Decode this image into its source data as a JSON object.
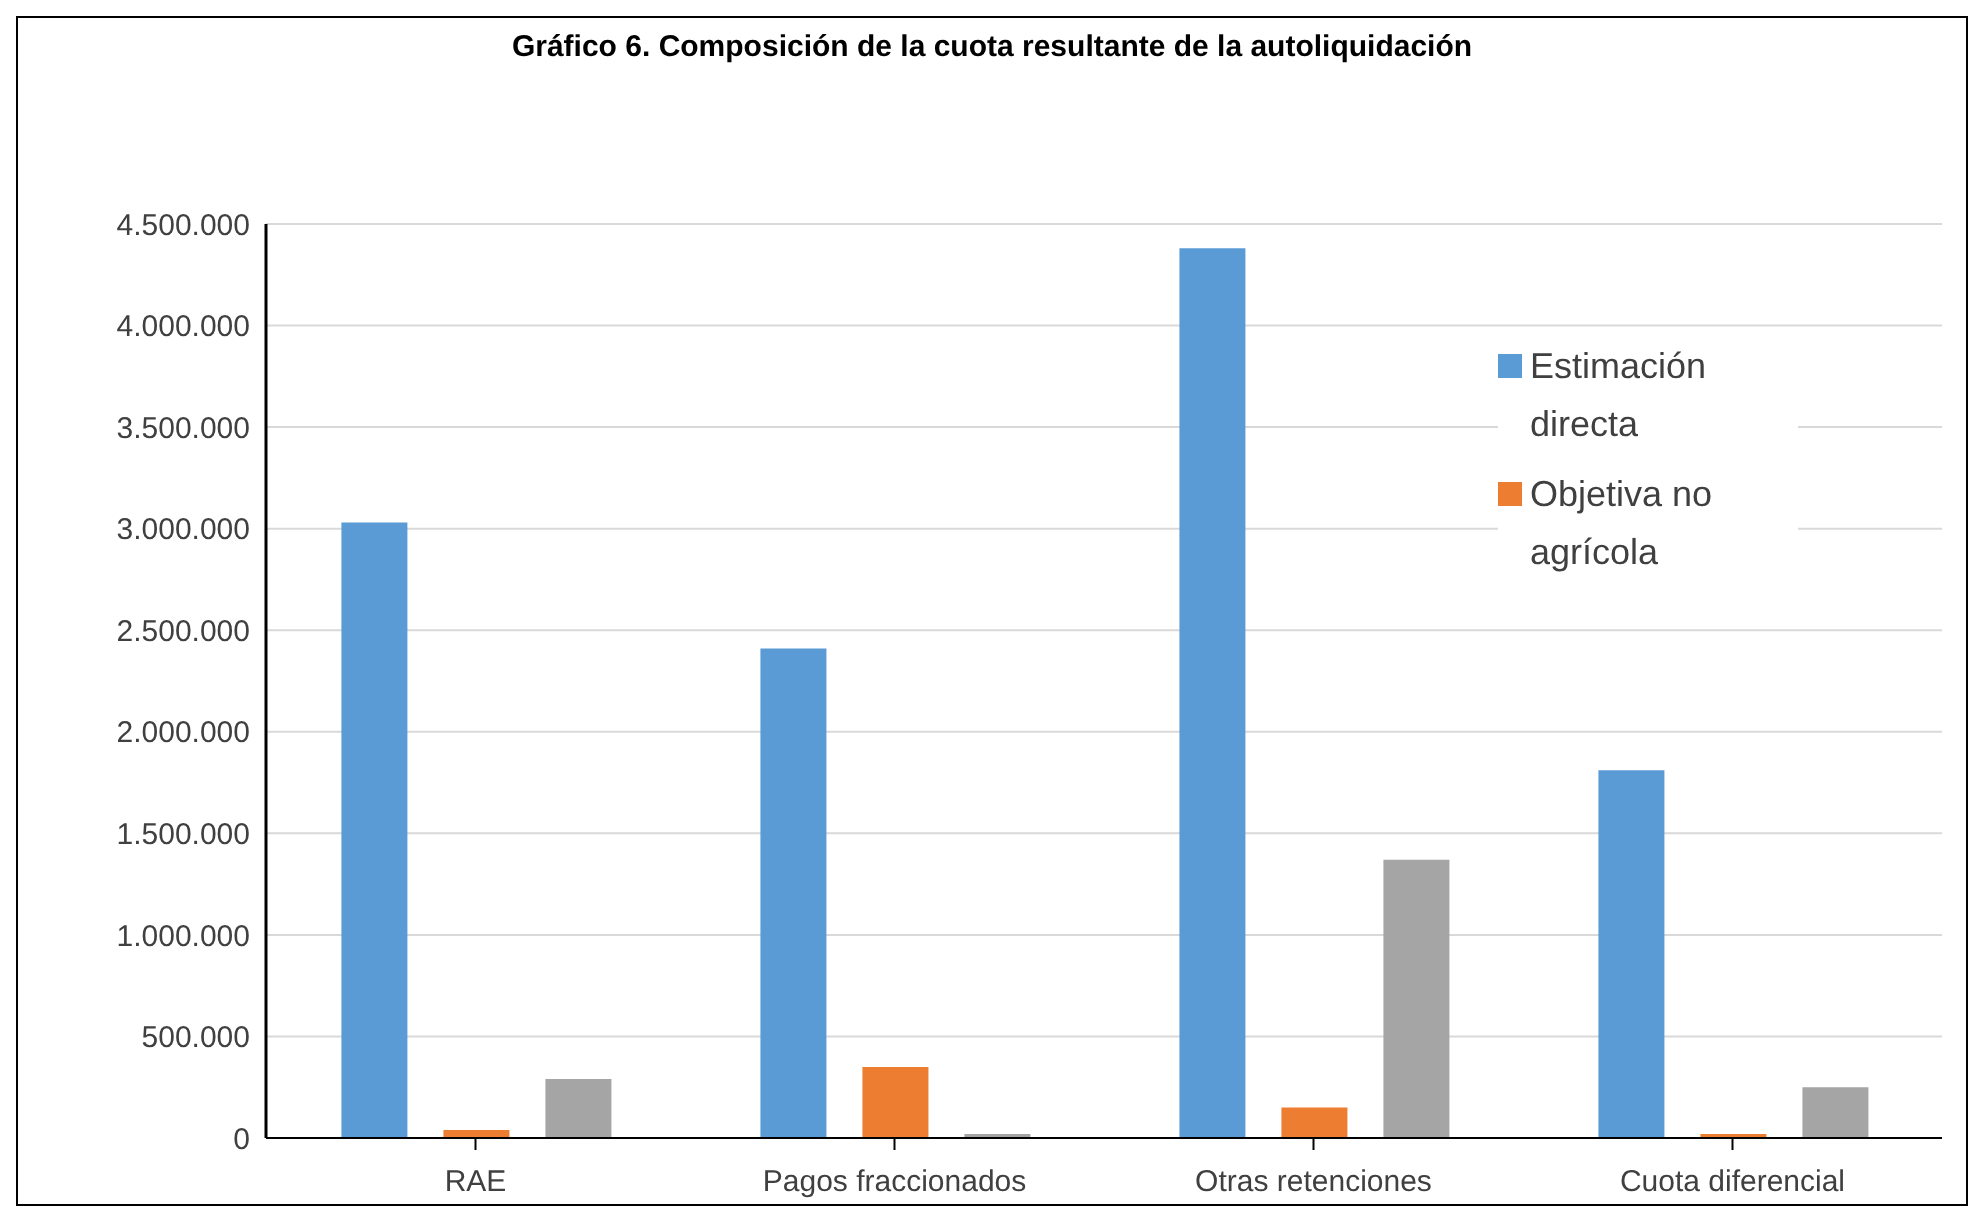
{
  "chart_data": {
    "type": "bar",
    "title": "Gráfico 6. Composición de la cuota resultante de la autoliquidación",
    "categories": [
      "RAE",
      "Pagos fraccionados",
      "Otras retenciones",
      "Cuota diferencial"
    ],
    "series": [
      {
        "name": "Estimación directa",
        "color": "#5b9bd5",
        "values": [
          3030000,
          2410000,
          4380000,
          1810000
        ]
      },
      {
        "name": "Objetiva no agrícola",
        "color": "#ed7d31",
        "values": [
          40000,
          350000,
          150000,
          20000
        ]
      },
      {
        "color": "#a5a5a5",
        "values": [
          290000,
          20000,
          1370000,
          250000
        ]
      }
    ],
    "ylim": [
      0,
      4500000
    ],
    "yticks": [
      {
        "value": 0,
        "label": "0"
      },
      {
        "value": 500000,
        "label": "500.000"
      },
      {
        "value": 1000000,
        "label": "1.000.000"
      },
      {
        "value": 1500000,
        "label": "1.500.000"
      },
      {
        "value": 2000000,
        "label": "2.000.000"
      },
      {
        "value": 2500000,
        "label": "2.500.000"
      },
      {
        "value": 3000000,
        "label": "3.000.000"
      },
      {
        "value": 3500000,
        "label": "3.500.000"
      },
      {
        "value": 4000000,
        "label": "4.000.000"
      },
      {
        "value": 4500000,
        "label": "4.500.000"
      }
    ],
    "grid": "y",
    "legend": "top right"
  }
}
